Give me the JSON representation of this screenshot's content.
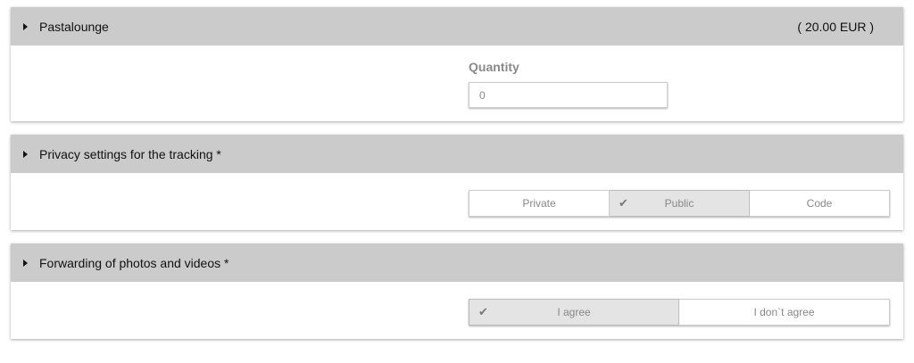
{
  "panels": [
    {
      "title": "Pastalounge",
      "price": "( 20.00 EUR )",
      "quantity_label": "Quantity",
      "quantity_value": "0"
    },
    {
      "title": "Privacy settings for the tracking *",
      "options": [
        "Private",
        "Public",
        "Code"
      ],
      "selected": "Public"
    },
    {
      "title": "Forwarding of photos and videos *",
      "options": [
        "I agree",
        "I don`t agree"
      ],
      "selected": "I agree"
    }
  ],
  "icons": {
    "expand": "triangle-right-icon",
    "check": "checkmark-icon"
  }
}
